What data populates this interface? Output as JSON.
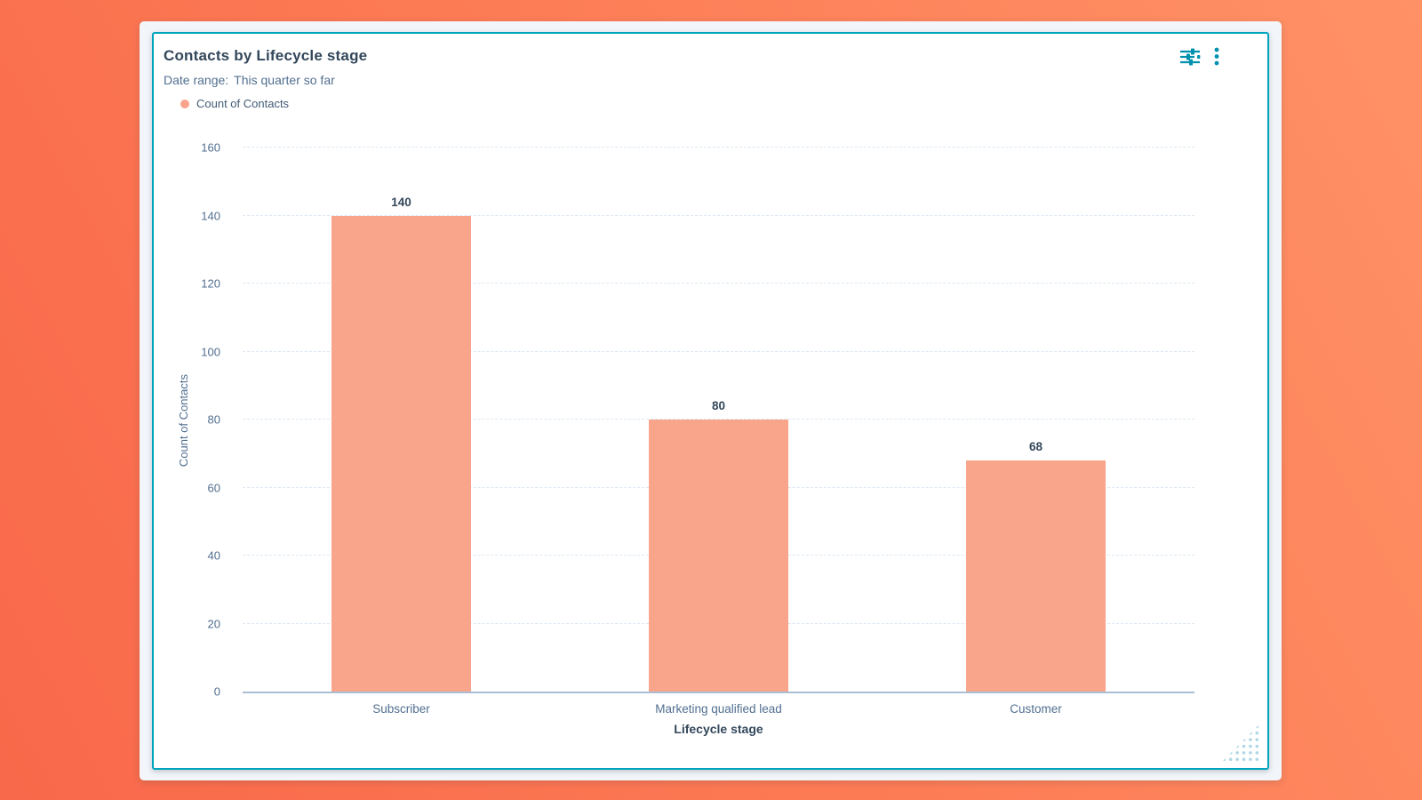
{
  "card": {
    "title": "Contacts by Lifecycle stage",
    "date_range": {
      "label": "Date range:",
      "value": "This quarter so far"
    },
    "legend": {
      "series_label": "Count of Contacts",
      "swatch_color": "#f9a58c"
    },
    "actions": {
      "settings_icon": "slider-settings",
      "menu_icon": "vertical-ellipsis"
    }
  },
  "chart_data": {
    "type": "bar",
    "title": "Contacts by Lifecycle stage",
    "categories": [
      "Subscriber",
      "Marketing qualified lead",
      "Customer"
    ],
    "values": [
      140,
      80,
      68
    ],
    "series": [
      {
        "name": "Count of Contacts",
        "values": [
          140,
          80,
          68
        ],
        "color": "#f9a58c"
      }
    ],
    "xlabel": "Lifecycle stage",
    "ylabel": "Count of Contacts",
    "ylim": [
      0,
      160
    ],
    "ytick_step": 20,
    "yticks": [
      0,
      20,
      40,
      60,
      80,
      100,
      120,
      140,
      160
    ],
    "grid": true,
    "legend_position": "top-left",
    "bar_color": "#f9a58c"
  },
  "colors": {
    "accent_teal": "#00a4bd",
    "icon_teal": "#0091ae",
    "heading_text": "#33475b",
    "secondary_text": "#516f90",
    "gridline": "#dce7f2",
    "axis_line": "#aabfd4",
    "frame_background": "#f2f5f9",
    "page_background_orange": "#fc7a54"
  }
}
